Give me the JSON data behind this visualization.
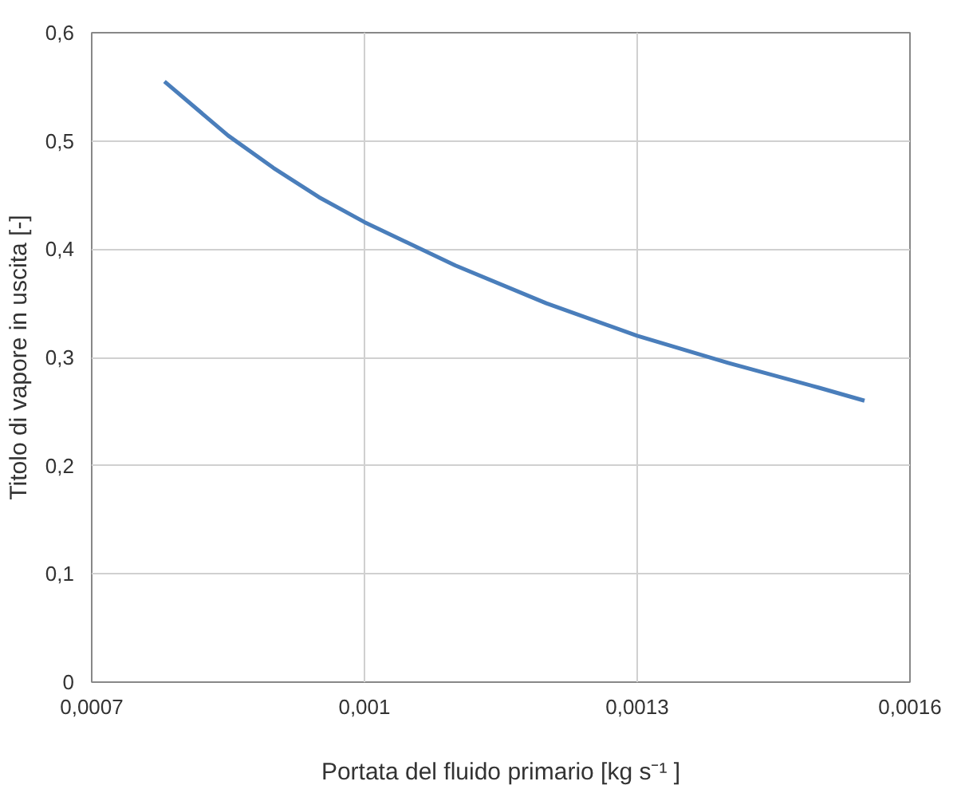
{
  "chart_data": {
    "type": "line",
    "xlabel": "Portata del fluido primario [kg s⁻¹ ]",
    "ylabel": "Titolo di vapore in uscita [-]",
    "x": [
      0.00078,
      0.00085,
      0.0009,
      0.00095,
      0.001,
      0.0011,
      0.0012,
      0.0013,
      0.0014,
      0.0015,
      0.00155
    ],
    "series": [
      {
        "color": "#4a7ebb",
        "values": [
          0.555,
          0.505,
          0.475,
          0.448,
          0.425,
          0.385,
          0.35,
          0.32,
          0.295,
          0.272,
          0.26
        ]
      }
    ],
    "xlim": [
      0.0007,
      0.0016
    ],
    "ylim": [
      0,
      0.6
    ],
    "xticks": [
      {
        "value": 0.0007,
        "label": "0,0007"
      },
      {
        "value": 0.001,
        "label": "0,001"
      },
      {
        "value": 0.0013,
        "label": "0,0013"
      },
      {
        "value": 0.0016,
        "label": "0,0016"
      }
    ],
    "yticks": [
      0,
      {
        "value": 0.1,
        "label": "0,1"
      },
      {
        "value": 0.2,
        "label": "0,2"
      },
      {
        "value": 0.3,
        "label": "0,3"
      },
      {
        "value": 0.4,
        "label": "0,4"
      },
      {
        "value": 0.5,
        "label": "0,5"
      },
      {
        "value": 0.6,
        "label": "0,6"
      }
    ],
    "grid": true,
    "marker": "none",
    "line_style": "solid"
  }
}
